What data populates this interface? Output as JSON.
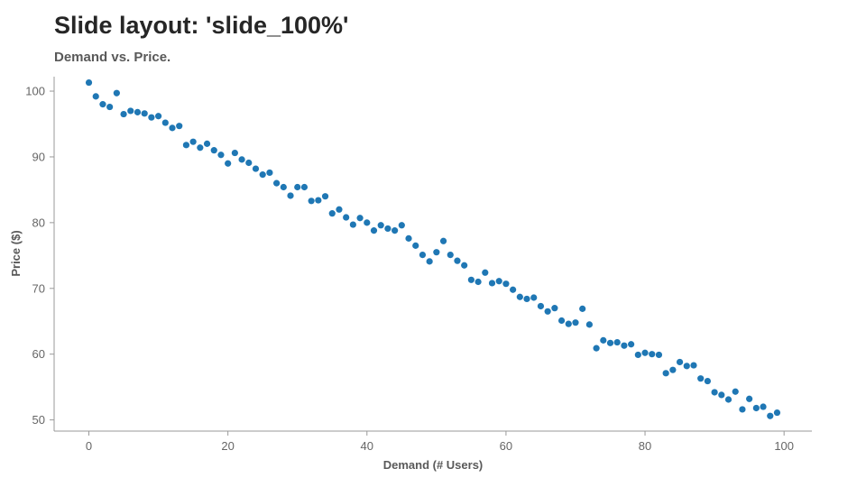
{
  "slide": {
    "title": "Slide layout: 'slide_100%'"
  },
  "colors": {
    "point": "#1f77b4",
    "axis": "#999999"
  },
  "chart_data": {
    "type": "scatter",
    "title": "Demand vs. Price.",
    "xlabel": "Demand (# Users)",
    "ylabel": "Price ($)",
    "xlim": [
      -5,
      104
    ],
    "ylim": [
      48.3,
      102.2
    ],
    "xticks": [
      0,
      20,
      40,
      60,
      80,
      100
    ],
    "yticks": [
      50,
      60,
      70,
      80,
      90,
      100
    ],
    "grid": false,
    "x": [
      0,
      1,
      2,
      3,
      4,
      5,
      6,
      7,
      8,
      9,
      10,
      11,
      12,
      13,
      14,
      15,
      16,
      17,
      18,
      19,
      20,
      21,
      22,
      23,
      24,
      25,
      26,
      27,
      28,
      29,
      30,
      31,
      32,
      33,
      34,
      35,
      36,
      37,
      38,
      39,
      40,
      41,
      42,
      43,
      44,
      45,
      46,
      47,
      48,
      49,
      50,
      51,
      52,
      53,
      54,
      55,
      56,
      57,
      58,
      59,
      60,
      61,
      62,
      63,
      64,
      65,
      66,
      67,
      68,
      69,
      70,
      71,
      72,
      73,
      74,
      75,
      76,
      77,
      78,
      79,
      80,
      81,
      82,
      83,
      84,
      85,
      86,
      87,
      88,
      89,
      90,
      91,
      92,
      93,
      94,
      95,
      96,
      97,
      98,
      99
    ],
    "y": [
      101.3,
      99.2,
      98.0,
      97.6,
      99.7,
      96.5,
      97.0,
      96.8,
      96.6,
      96.0,
      96.2,
      95.2,
      94.4,
      94.7,
      91.8,
      92.3,
      91.4,
      92.0,
      91.0,
      90.3,
      89.0,
      90.6,
      89.6,
      89.1,
      88.2,
      87.3,
      87.6,
      86.0,
      85.4,
      84.1,
      85.4,
      85.4,
      83.3,
      83.4,
      84.0,
      81.4,
      82.0,
      80.8,
      79.7,
      80.7,
      80.0,
      78.8,
      79.6,
      79.1,
      78.8,
      79.6,
      77.6,
      76.5,
      75.1,
      74.1,
      75.5,
      77.2,
      75.1,
      74.2,
      73.5,
      71.3,
      71.0,
      72.4,
      70.8,
      71.1,
      70.7,
      69.8,
      68.7,
      68.4,
      68.6,
      67.3,
      66.5,
      67.0,
      65.1,
      64.6,
      64.8,
      66.9,
      64.5,
      60.9,
      62.1,
      61.7,
      61.8,
      61.3,
      61.5,
      59.9,
      60.2,
      60.0,
      59.9,
      57.1,
      57.6,
      58.8,
      58.2,
      58.3,
      56.3,
      55.9,
      54.2,
      53.8,
      53.1,
      54.3,
      51.6,
      53.2,
      51.8,
      52.0,
      50.6,
      51.1
    ]
  }
}
